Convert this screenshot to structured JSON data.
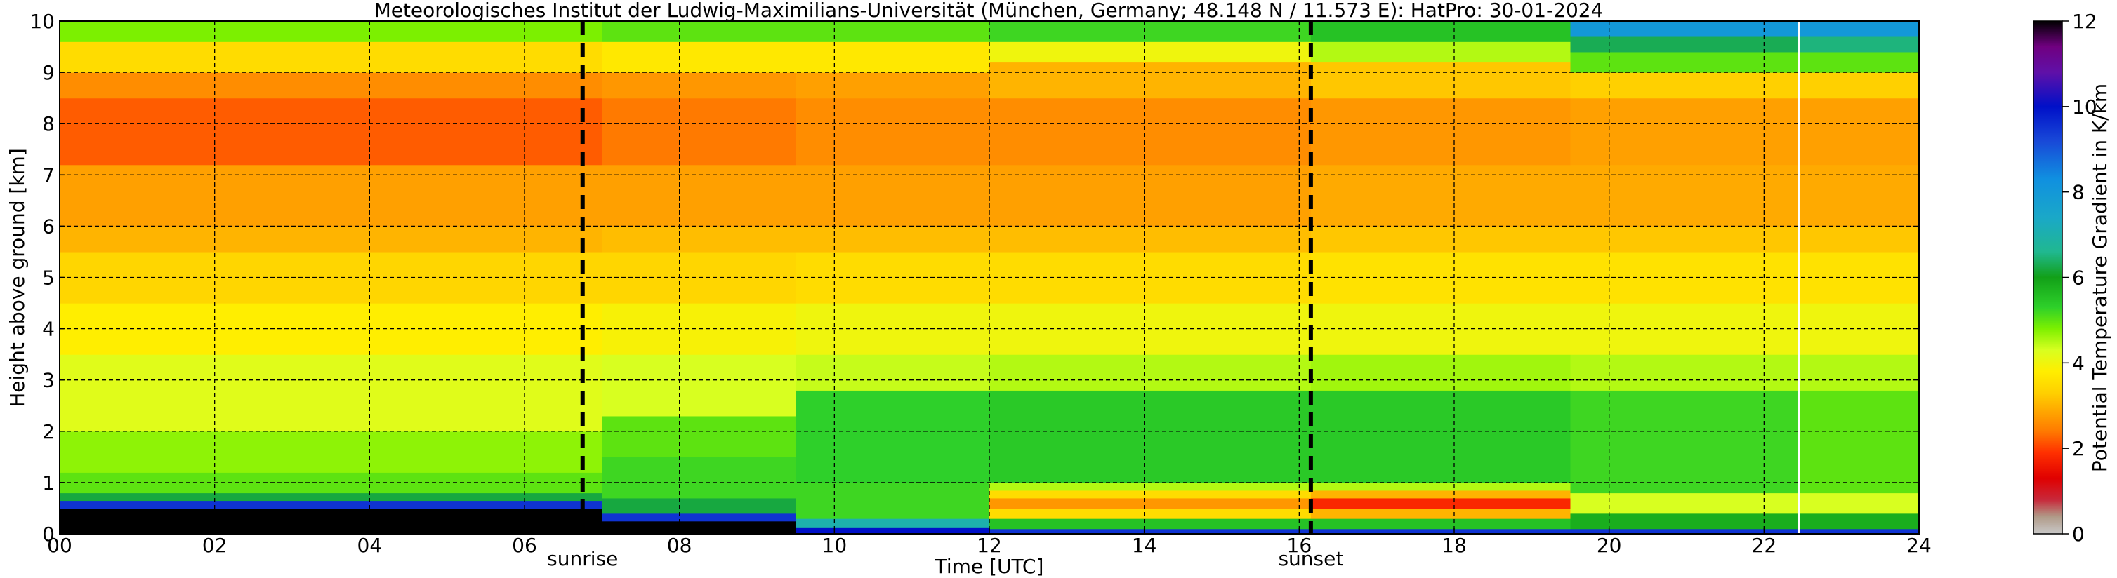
{
  "chart_data": {
    "type": "heatmap",
    "title": "Meteorologisches Institut der Ludwig-Maximilians-Universität (München, Germany; 48.148 N / 11.573 E):    HatPro: 30-01-2024",
    "xlabel": "Time [UTC]",
    "ylabel": "Height above ground [km]",
    "xlim": [
      0,
      24
    ],
    "ylim": [
      0,
      10
    ],
    "x_ticks": [
      "00",
      "02",
      "04",
      "06",
      "08",
      "10",
      "12",
      "14",
      "16",
      "18",
      "20",
      "22",
      "24"
    ],
    "x_tick_values": [
      0,
      2,
      4,
      6,
      8,
      10,
      12,
      14,
      16,
      18,
      20,
      22,
      24
    ],
    "y_ticks": [
      "0",
      "1",
      "2",
      "3",
      "4",
      "5",
      "6",
      "7",
      "8",
      "9",
      "10"
    ],
    "y_tick_values": [
      0,
      1,
      2,
      3,
      4,
      5,
      6,
      7,
      8,
      9,
      10
    ],
    "grid": true,
    "colorbar": {
      "label": "Potential Temperature Gradient in K/km",
      "min": 0,
      "max": 12,
      "ticks": [
        "0",
        "2",
        "4",
        "6",
        "8",
        "10",
        "12"
      ],
      "tick_values": [
        0,
        2,
        4,
        6,
        8,
        10,
        12
      ]
    },
    "annotations": [
      {
        "label": "sunrise",
        "time": 6.75
      },
      {
        "label": "sunset",
        "time": 16.15
      }
    ],
    "missing_data_time": 22.45,
    "time_periods": [
      {
        "start": 0,
        "end": 7,
        "layers": [
          [
            0.0,
            0.1,
            12
          ],
          [
            0.1,
            0.5,
            12
          ],
          [
            0.5,
            0.65,
            9.5
          ],
          [
            0.65,
            0.8,
            6.2
          ],
          [
            0.8,
            1.2,
            5.0
          ],
          [
            1.2,
            2.0,
            4.7
          ],
          [
            2.0,
            3.5,
            4.2
          ],
          [
            3.5,
            4.5,
            3.8
          ],
          [
            4.5,
            5.5,
            3.4
          ],
          [
            5.5,
            6.0,
            3.0
          ],
          [
            6.0,
            7.2,
            2.8
          ],
          [
            7.2,
            8.5,
            2.2
          ],
          [
            8.5,
            9.0,
            2.6
          ],
          [
            9.0,
            9.6,
            3.5
          ],
          [
            9.6,
            10,
            4.8
          ]
        ]
      },
      {
        "start": 7,
        "end": 9.5,
        "layers": [
          [
            0.0,
            0.25,
            12
          ],
          [
            0.25,
            0.4,
            9.5
          ],
          [
            0.4,
            0.7,
            6.2
          ],
          [
            0.7,
            1.5,
            5.2
          ],
          [
            1.5,
            2.3,
            5.0
          ],
          [
            2.3,
            3.5,
            4.3
          ],
          [
            3.5,
            4.5,
            3.9
          ],
          [
            4.5,
            5.5,
            3.4
          ],
          [
            5.5,
            6.0,
            3.1
          ],
          [
            6.0,
            7.2,
            2.8
          ],
          [
            7.2,
            8.5,
            2.4
          ],
          [
            8.5,
            9.0,
            2.7
          ],
          [
            9.0,
            9.6,
            3.7
          ],
          [
            9.6,
            10,
            5.0
          ]
        ]
      },
      {
        "start": 9.5,
        "end": 12,
        "layers": [
          [
            0.0,
            0.12,
            10
          ],
          [
            0.12,
            0.3,
            7.0
          ],
          [
            0.3,
            1.0,
            5.2
          ],
          [
            1.0,
            2.8,
            5.3
          ],
          [
            2.8,
            3.5,
            4.4
          ],
          [
            3.5,
            4.5,
            4.0
          ],
          [
            4.5,
            5.5,
            3.5
          ],
          [
            5.5,
            6.0,
            3.1
          ],
          [
            6.0,
            7.2,
            2.8
          ],
          [
            7.2,
            8.5,
            2.6
          ],
          [
            8.5,
            9.0,
            2.8
          ],
          [
            9.0,
            9.6,
            3.7
          ],
          [
            9.6,
            10,
            5.0
          ]
        ]
      },
      {
        "start": 12,
        "end": 16.15,
        "layers": [
          [
            0.0,
            0.1,
            9.5
          ],
          [
            0.1,
            0.3,
            5.5
          ],
          [
            0.3,
            0.5,
            3.5
          ],
          [
            0.5,
            0.7,
            2.7
          ],
          [
            0.7,
            0.85,
            3.5
          ],
          [
            0.85,
            1.0,
            4.5
          ],
          [
            1.0,
            2.8,
            5.4
          ],
          [
            2.8,
            3.5,
            4.5
          ],
          [
            3.5,
            4.5,
            4.0
          ],
          [
            4.5,
            5.5,
            3.5
          ],
          [
            5.5,
            6.0,
            3.1
          ],
          [
            6.0,
            7.2,
            2.8
          ],
          [
            7.2,
            8.5,
            2.6
          ],
          [
            8.5,
            9.2,
            3.0
          ],
          [
            9.2,
            9.6,
            4.0
          ],
          [
            9.6,
            10,
            5.2
          ]
        ]
      },
      {
        "start": 16.15,
        "end": 19.5,
        "layers": [
          [
            0.0,
            0.1,
            9.5
          ],
          [
            0.1,
            0.3,
            5.5
          ],
          [
            0.3,
            0.5,
            3.0
          ],
          [
            0.5,
            0.7,
            1.8
          ],
          [
            0.7,
            0.85,
            3.0
          ],
          [
            0.85,
            1.0,
            4.5
          ],
          [
            1.0,
            2.8,
            5.4
          ],
          [
            2.8,
            3.5,
            4.6
          ],
          [
            3.5,
            4.5,
            4.0
          ],
          [
            4.5,
            5.5,
            3.6
          ],
          [
            5.5,
            6.0,
            3.2
          ],
          [
            6.0,
            7.2,
            2.9
          ],
          [
            7.2,
            8.5,
            2.7
          ],
          [
            8.5,
            9.2,
            3.2
          ],
          [
            9.2,
            9.6,
            4.5
          ],
          [
            9.6,
            10,
            5.5
          ]
        ]
      },
      {
        "start": 19.5,
        "end": 22.45,
        "layers": [
          [
            0.0,
            0.1,
            9.5
          ],
          [
            0.1,
            0.4,
            5.8
          ],
          [
            0.4,
            0.8,
            4.3
          ],
          [
            0.8,
            2.8,
            5.2
          ],
          [
            2.8,
            3.5,
            4.5
          ],
          [
            3.5,
            4.5,
            4.0
          ],
          [
            4.5,
            5.5,
            3.6
          ],
          [
            5.5,
            6.0,
            3.2
          ],
          [
            6.0,
            7.2,
            2.9
          ],
          [
            7.2,
            8.5,
            2.8
          ],
          [
            8.5,
            9.0,
            3.3
          ],
          [
            9.0,
            9.4,
            5.0
          ],
          [
            9.4,
            9.7,
            6.3
          ],
          [
            9.7,
            10,
            8.0
          ]
        ]
      },
      {
        "start": 22.45,
        "end": 24,
        "layers": [
          [
            0.0,
            0.1,
            9.5
          ],
          [
            0.1,
            0.4,
            5.8
          ],
          [
            0.4,
            0.8,
            4.3
          ],
          [
            0.8,
            2.8,
            5.0
          ],
          [
            2.8,
            3.5,
            4.5
          ],
          [
            3.5,
            4.5,
            4.0
          ],
          [
            4.5,
            5.5,
            3.6
          ],
          [
            5.5,
            6.0,
            3.2
          ],
          [
            6.0,
            7.2,
            2.9
          ],
          [
            7.2,
            8.5,
            2.8
          ],
          [
            8.5,
            9.0,
            3.3
          ],
          [
            9.0,
            9.4,
            5.0
          ],
          [
            9.4,
            9.7,
            6.5
          ],
          [
            9.7,
            10,
            8.0
          ]
        ]
      }
    ]
  }
}
